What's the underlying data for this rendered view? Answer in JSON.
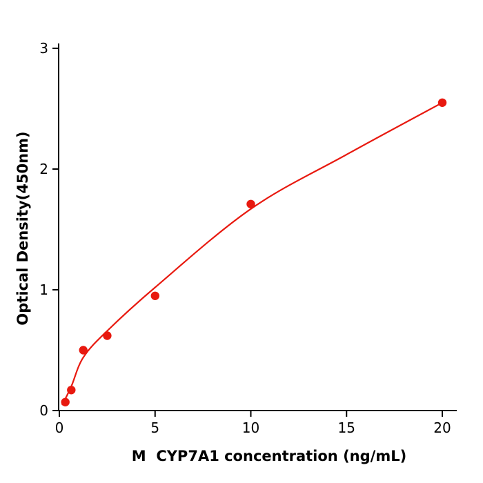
{
  "chart_data": {
    "type": "scatter",
    "title": "",
    "xlabel": "M  CYP7A1 concentration (ng/mL)",
    "ylabel": "Optical Density(450nm)",
    "xlim": [
      0,
      20.8
    ],
    "ylim": [
      0,
      3
    ],
    "xticks": [
      0,
      5,
      10,
      15,
      20
    ],
    "yticks": [
      0,
      1,
      2,
      3
    ],
    "grid": false,
    "legend_position": "none",
    "marker_color": "#e8190f",
    "line_color": "#e8190f",
    "axis_color": "#000000",
    "points": [
      [
        0.3125,
        0.07
      ],
      [
        0.625,
        0.17
      ],
      [
        1.25,
        0.5
      ],
      [
        2.5,
        0.62
      ],
      [
        5,
        0.95
      ],
      [
        10,
        1.71
      ],
      [
        20,
        2.55
      ]
    ],
    "fit_curve": {
      "description": "smooth saturating regression curve through standards",
      "anchors": [
        [
          0.16,
          0.05
        ],
        [
          0.625,
          0.2
        ],
        [
          1.25,
          0.44
        ],
        [
          2.5,
          0.66
        ],
        [
          5,
          1.02
        ],
        [
          10,
          1.67
        ],
        [
          15,
          2.12
        ],
        [
          20,
          2.55
        ]
      ]
    }
  }
}
